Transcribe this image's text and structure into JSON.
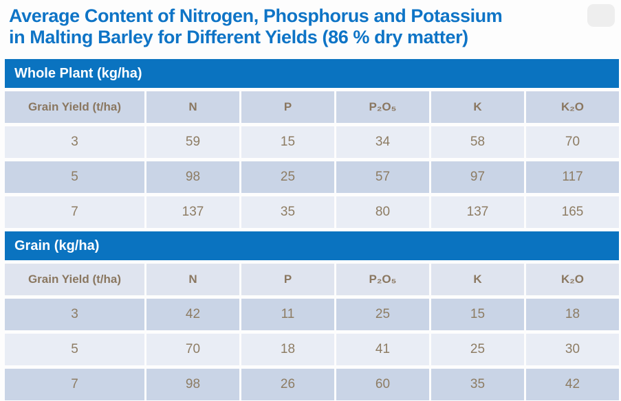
{
  "slide_title": {
    "line1": "Average Content of Nitrogen, Phosphorus and Potassium",
    "line2": "in Malting Barley for Different Yields (86 % dry matter)"
  },
  "chart_data": [
    {
      "type": "table",
      "title": "Whole Plant (kg/ha)",
      "columns": [
        "Grain Yield (t/ha)",
        "N",
        "P",
        "P₂O₅",
        "K",
        "K₂O"
      ],
      "rows": [
        [
          3,
          59,
          15,
          34,
          58,
          70
        ],
        [
          5,
          98,
          25,
          57,
          97,
          117
        ],
        [
          7,
          137,
          35,
          80,
          137,
          165
        ]
      ]
    },
    {
      "type": "table",
      "title": "Grain (kg/ha)",
      "columns": [
        "Grain Yield (t/ha)",
        "N",
        "P",
        "P₂O₅",
        "K",
        "K₂O"
      ],
      "rows": [
        [
          3,
          42,
          11,
          25,
          15,
          18
        ],
        [
          5,
          70,
          18,
          41,
          25,
          30
        ],
        [
          7,
          98,
          26,
          60,
          35,
          42
        ]
      ]
    }
  ],
  "colors": {
    "section_bar_blue": "#0a73c0",
    "title_blue": "#0e74c6",
    "header_row1_bg": "#ccd6e7",
    "header_row2_bg": "#dfe4ef",
    "row_light_bg": "#e9edf5",
    "row_dark_bg": "#c9d4e6",
    "cell_text_brown": "#8d7c63",
    "section_bar_text": "#ffffff"
  }
}
